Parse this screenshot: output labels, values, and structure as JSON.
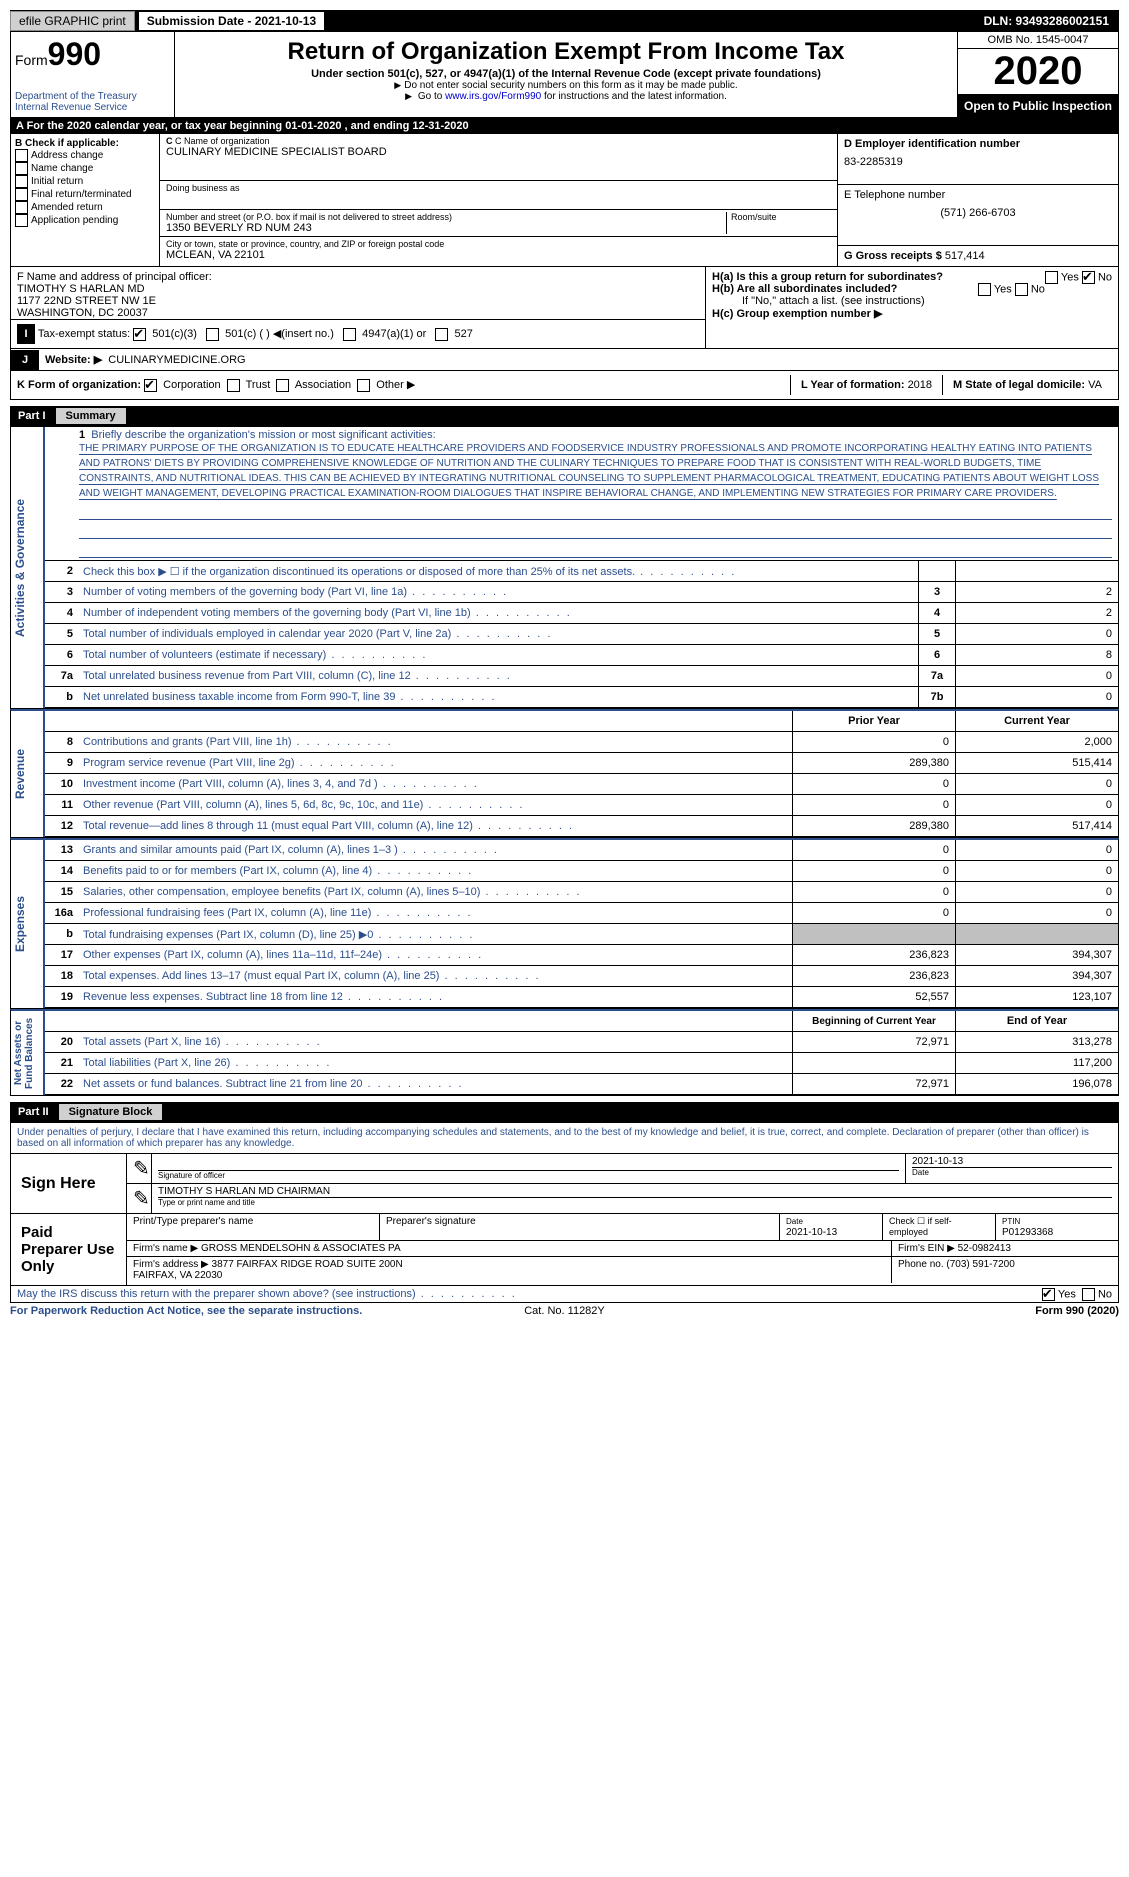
{
  "top": {
    "efile": "efile GRAPHIC print",
    "sub_label": "Submission Date - ",
    "sub_date": "2021-10-13",
    "dln": "DLN: 93493286002151"
  },
  "header": {
    "form": "Form",
    "num": "990",
    "dept": "Department of the Treasury\nInternal Revenue Service",
    "title": "Return of Organization Exempt From Income Tax",
    "sub": "Under section 501(c), 527, or 4947(a)(1) of the Internal Revenue Code (except private foundations)",
    "note1": "Do not enter social security numbers on this form as it may be made public.",
    "note2": "Go to ",
    "link": "www.irs.gov/Form990",
    "note2b": " for instructions and the latest information.",
    "omb": "OMB No. 1545-0047",
    "year": "2020",
    "open": "Open to Public Inspection"
  },
  "rowA": "A For the 2020 calendar year, or tax year beginning 01-01-2020   , and ending 12-31-2020",
  "B": {
    "label": "B Check if applicable:",
    "opts": [
      "Address change",
      "Name change",
      "Initial return",
      "Final return/terminated",
      "Amended return",
      "Application pending"
    ]
  },
  "C": {
    "name_lbl": "C Name of organization",
    "name": "CULINARY MEDICINE SPECIALIST BOARD",
    "dba_lbl": "Doing business as",
    "dba": "",
    "addr_lbl": "Number and street (or P.O. box if mail is not delivered to street address)",
    "addr": "1350 BEVERLY RD NUM 243",
    "room_lbl": "Room/suite",
    "city_lbl": "City or town, state or province, country, and ZIP or foreign postal code",
    "city": "MCLEAN, VA  22101"
  },
  "D": {
    "lbl": "D Employer identification number",
    "val": "83-2285319"
  },
  "E": {
    "lbl": "E Telephone number",
    "val": "(571) 266-6703"
  },
  "G": {
    "lbl": "G Gross receipts $",
    "val": "517,414"
  },
  "F": {
    "lbl": "F  Name and address of principal officer:",
    "name": "TIMOTHY S HARLAN MD",
    "addr1": "1177 22ND STREET NW 1E",
    "addr2": "WASHINGTON, DC  20037"
  },
  "H": {
    "a": "H(a)  Is this a group return for subordinates?",
    "b": "H(b)  Are all subordinates included?",
    "bnote": "If \"No,\" attach a list. (see instructions)",
    "c": "H(c)  Group exemption number ▶"
  },
  "I": {
    "lbl": "Tax-exempt status:",
    "opts": [
      "501(c)(3)",
      "501(c) (  ) ◀(insert no.)",
      "4947(a)(1) or",
      "527"
    ]
  },
  "J": {
    "lbl": "Website: ▶",
    "val": "CULINARYMEDICINE.ORG"
  },
  "K": {
    "lbl": "K Form of organization:",
    "opts": [
      "Corporation",
      "Trust",
      "Association",
      "Other ▶"
    ]
  },
  "L": {
    "lbl": "L Year of formation:",
    "val": "2018"
  },
  "M": {
    "lbl": "M State of legal domicile:",
    "val": "VA"
  },
  "part1": {
    "label": "Part I",
    "title": "Summary"
  },
  "vlabels": {
    "ag": "Activities & Governance",
    "rev": "Revenue",
    "exp": "Expenses",
    "na": "Net Assets or\nFund Balances"
  },
  "mission_lbl": "Briefly describe the organization's mission or most significant activities:",
  "mission": "THE PRIMARY PURPOSE OF THE ORGANIZATION IS TO EDUCATE HEALTHCARE PROVIDERS AND FOODSERVICE INDUSTRY PROFESSIONALS AND PROMOTE INCORPORATING HEALTHY EATING INTO PATIENTS AND PATRONS' DIETS BY PROVIDING COMPREHENSIVE KNOWLEDGE OF NUTRITION AND THE CULINARY TECHNIQUES TO PREPARE FOOD THAT IS CONSISTENT WITH REAL-WORLD BUDGETS, TIME CONSTRAINTS, AND NUTRITIONAL IDEAS. THIS CAN BE ACHIEVED BY INTEGRATING NUTRITIONAL COUNSELING TO SUPPLEMENT PHARMACOLOGICAL TREATMENT, EDUCATING PATIENTS ABOUT WEIGHT LOSS AND WEIGHT MANAGEMENT, DEVELOPING PRACTICAL EXAMINATION-ROOM DIALOGUES THAT INSPIRE BEHAVIORAL CHANGE, AND IMPLEMENTING NEW STRATEGIES FOR PRIMARY CARE PROVIDERS.",
  "lines_ag": [
    {
      "n": "2",
      "d": "Check this box ▶ ☐ if the organization discontinued its operations or disposed of more than 25% of its net assets.",
      "box": "",
      "v": ""
    },
    {
      "n": "3",
      "d": "Number of voting members of the governing body (Part VI, line 1a)",
      "box": "3",
      "v": "2"
    },
    {
      "n": "4",
      "d": "Number of independent voting members of the governing body (Part VI, line 1b)",
      "box": "4",
      "v": "2"
    },
    {
      "n": "5",
      "d": "Total number of individuals employed in calendar year 2020 (Part V, line 2a)",
      "box": "5",
      "v": "0"
    },
    {
      "n": "6",
      "d": "Total number of volunteers (estimate if necessary)",
      "box": "6",
      "v": "8"
    },
    {
      "n": "7a",
      "d": "Total unrelated business revenue from Part VIII, column (C), line 12",
      "box": "7a",
      "v": "0"
    },
    {
      "n": "b",
      "d": "Net unrelated business taxable income from Form 990-T, line 39",
      "box": "7b",
      "v": "0"
    }
  ],
  "hdr_py": "Prior Year",
  "hdr_cy": "Current Year",
  "lines_rev": [
    {
      "n": "8",
      "d": "Contributions and grants (Part VIII, line 1h)",
      "py": "0",
      "cy": "2,000"
    },
    {
      "n": "9",
      "d": "Program service revenue (Part VIII, line 2g)",
      "py": "289,380",
      "cy": "515,414"
    },
    {
      "n": "10",
      "d": "Investment income (Part VIII, column (A), lines 3, 4, and 7d )",
      "py": "0",
      "cy": "0"
    },
    {
      "n": "11",
      "d": "Other revenue (Part VIII, column (A), lines 5, 6d, 8c, 9c, 10c, and 11e)",
      "py": "0",
      "cy": "0"
    },
    {
      "n": "12",
      "d": "Total revenue—add lines 8 through 11 (must equal Part VIII, column (A), line 12)",
      "py": "289,380",
      "cy": "517,414"
    }
  ],
  "lines_exp": [
    {
      "n": "13",
      "d": "Grants and similar amounts paid (Part IX, column (A), lines 1–3 )",
      "py": "0",
      "cy": "0"
    },
    {
      "n": "14",
      "d": "Benefits paid to or for members (Part IX, column (A), line 4)",
      "py": "0",
      "cy": "0"
    },
    {
      "n": "15",
      "d": "Salaries, other compensation, employee benefits (Part IX, column (A), lines 5–10)",
      "py": "0",
      "cy": "0"
    },
    {
      "n": "16a",
      "d": "Professional fundraising fees (Part IX, column (A), line 11e)",
      "py": "0",
      "cy": "0"
    },
    {
      "n": "b",
      "d": "Total fundraising expenses (Part IX, column (D), line 25) ▶0",
      "py": "",
      "cy": "",
      "shaded": true
    },
    {
      "n": "17",
      "d": "Other expenses (Part IX, column (A), lines 11a–11d, 11f–24e)",
      "py": "236,823",
      "cy": "394,307"
    },
    {
      "n": "18",
      "d": "Total expenses. Add lines 13–17 (must equal Part IX, column (A), line 25)",
      "py": "236,823",
      "cy": "394,307"
    },
    {
      "n": "19",
      "d": "Revenue less expenses. Subtract line 18 from line 12",
      "py": "52,557",
      "cy": "123,107"
    }
  ],
  "hdr_bcy": "Beginning of Current Year",
  "hdr_ey": "End of Year",
  "lines_na": [
    {
      "n": "20",
      "d": "Total assets (Part X, line 16)",
      "py": "72,971",
      "cy": "313,278"
    },
    {
      "n": "21",
      "d": "Total liabilities (Part X, line 26)",
      "py": "",
      "cy": "117,200"
    },
    {
      "n": "22",
      "d": "Net assets or fund balances. Subtract line 21 from line 20",
      "py": "72,971",
      "cy": "196,078"
    }
  ],
  "part2": {
    "label": "Part II",
    "title": "Signature Block"
  },
  "sig": {
    "decl": "Under penalties of perjury, I declare that I have examined this return, including accompanying schedules and statements, and to the best of my knowledge and belief, it is true, correct, and complete. Declaration of preparer (other than officer) is based on all information of which preparer has any knowledge.",
    "sign_here": "Sign Here",
    "sig_officer": "Signature of officer",
    "date": "2021-10-13",
    "date_lbl": "Date",
    "name": "TIMOTHY S HARLAN MD CHAIRMAN",
    "name_lbl": "Type or print name and title",
    "paid": "Paid Preparer Use Only",
    "prep_name_lbl": "Print/Type preparer's name",
    "prep_sig_lbl": "Preparer's signature",
    "prep_date": "2021-10-13",
    "self_emp": "Check ☐ if self-employed",
    "ptin_lbl": "PTIN",
    "ptin": "P01293368",
    "firm_name_lbl": "Firm's name   ▶",
    "firm_name": "GROSS MENDELSOHN & ASSOCIATES PA",
    "firm_ein_lbl": "Firm's EIN ▶",
    "firm_ein": "52-0982413",
    "firm_addr_lbl": "Firm's address ▶",
    "firm_addr": "3877 FAIRFAX RIDGE ROAD SUITE 200N\nFAIRFAX, VA  22030",
    "phone_lbl": "Phone no.",
    "phone": "(703) 591-7200",
    "discuss": "May the IRS discuss this return with the preparer shown above? (see instructions)"
  },
  "footer": {
    "left": "For Paperwork Reduction Act Notice, see the separate instructions.",
    "mid": "Cat. No. 11282Y",
    "right": "Form 990 (2020)"
  }
}
